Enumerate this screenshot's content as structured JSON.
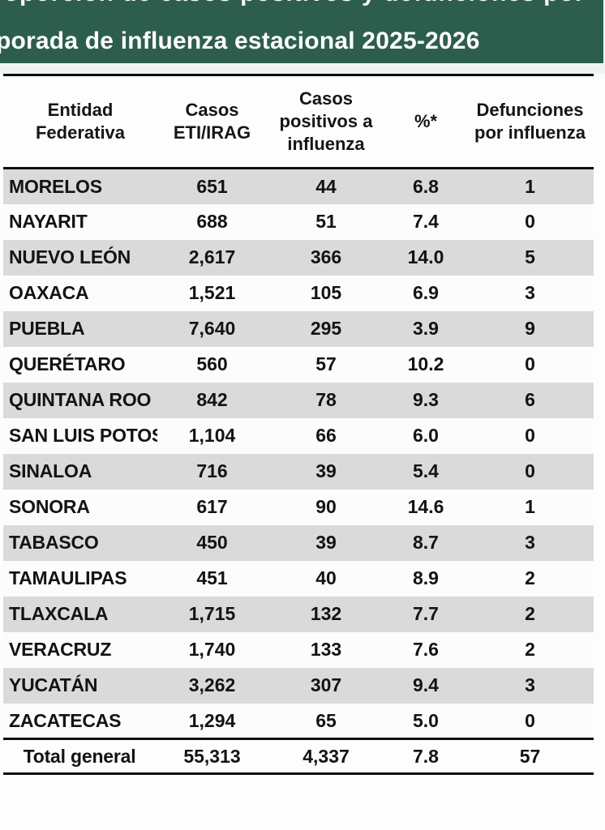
{
  "banner": {
    "bg_color": "#2d5e4d",
    "text_color": "#ffffff",
    "line1_fragment": "roporción de casos positivos y defunciones por",
    "line2": "porada de influenza estacional 2025-2026"
  },
  "table": {
    "stripe_color": "#dadada",
    "columns": [
      "Entidad Federativa",
      "Casos ETI/IRAG",
      "Casos positivos a influenza",
      "%*",
      "Defunciones por influenza"
    ],
    "rows": [
      [
        "MORELOS",
        "651",
        "44",
        "6.8",
        "1"
      ],
      [
        "NAYARIT",
        "688",
        "51",
        "7.4",
        "0"
      ],
      [
        "NUEVO LEÓN",
        "2,617",
        "366",
        "14.0",
        "5"
      ],
      [
        "OAXACA",
        "1,521",
        "105",
        "6.9",
        "3"
      ],
      [
        "PUEBLA",
        "7,640",
        "295",
        "3.9",
        "9"
      ],
      [
        "QUERÉTARO",
        "560",
        "57",
        "10.2",
        "0"
      ],
      [
        "QUINTANA ROO",
        "842",
        "78",
        "9.3",
        "6"
      ],
      [
        "SAN LUIS POTOSÍ",
        "1,104",
        "66",
        "6.0",
        "0"
      ],
      [
        "SINALOA",
        "716",
        "39",
        "5.4",
        "0"
      ],
      [
        "SONORA",
        "617",
        "90",
        "14.6",
        "1"
      ],
      [
        "TABASCO",
        "450",
        "39",
        "8.7",
        "3"
      ],
      [
        "TAMAULIPAS",
        "451",
        "40",
        "8.9",
        "2"
      ],
      [
        "TLAXCALA",
        "1,715",
        "132",
        "7.7",
        "2"
      ],
      [
        "VERACRUZ",
        "1,740",
        "133",
        "7.6",
        "2"
      ],
      [
        "YUCATÁN",
        "3,262",
        "307",
        "9.4",
        "3"
      ],
      [
        "ZACATECAS",
        "1,294",
        "65",
        "5.0",
        "0"
      ]
    ],
    "total": [
      "Total general",
      "55,313",
      "4,337",
      "7.8",
      "57"
    ]
  }
}
